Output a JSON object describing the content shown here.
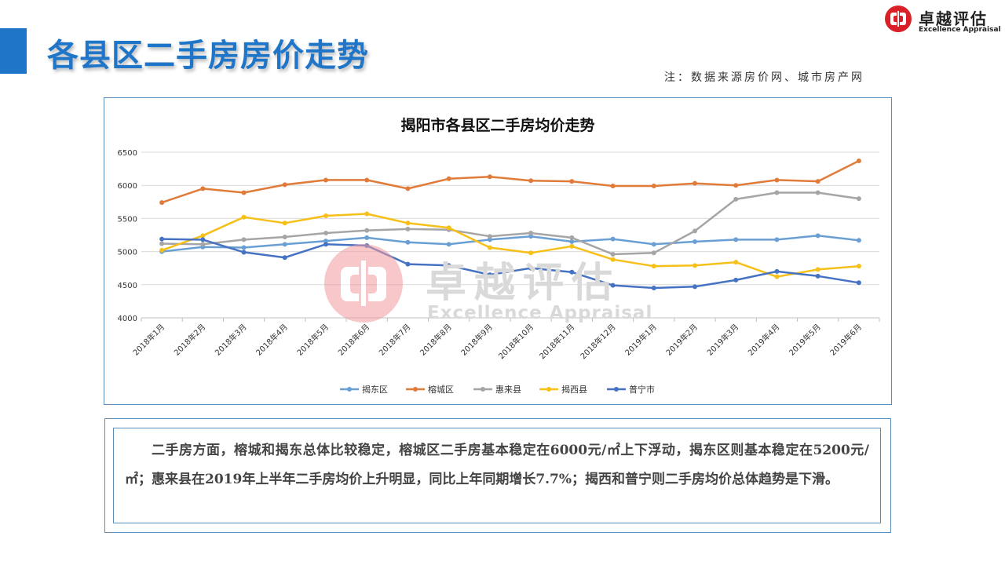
{
  "header": {
    "title": "各县区二手房房价走势",
    "source_note": "注：数据来源房价网、城市房产网"
  },
  "brand": {
    "name_cn": "卓越评估",
    "name_en": "Excellence Appraisal",
    "color": "#d92026"
  },
  "watermark": {
    "name_cn": "卓越评估",
    "name_en": "Excellence Appraisal"
  },
  "chart_data": {
    "type": "line",
    "title": "揭阳市各县区二手房均价走势",
    "xlabel": "",
    "ylabel": "",
    "ylim": [
      4000,
      6500
    ],
    "yticks": [
      4000,
      4500,
      5000,
      5500,
      6000,
      6500
    ],
    "grid": true,
    "legend_position": "bottom",
    "categories": [
      "2018年1月",
      "2018年2月",
      "2018年3月",
      "2018年4月",
      "2018年5月",
      "2018年6月",
      "2018年7月",
      "2018年8月",
      "2018年9月",
      "2018年10月",
      "2018年11月",
      "2018年12月",
      "2019年1月",
      "2019年2月",
      "2019年3月",
      "2019年4月",
      "2019年5月",
      "2019年6月"
    ],
    "series": [
      {
        "name": "揭东区",
        "color": "#6a9fd4",
        "values": [
          5000,
          5070,
          5060,
          5110,
          5160,
          5210,
          5140,
          5110,
          5180,
          5230,
          5150,
          5190,
          5110,
          5150,
          5180,
          5180,
          5240,
          5170
        ]
      },
      {
        "name": "榕城区",
        "color": "#e07b39",
        "values": [
          5740,
          5950,
          5890,
          6010,
          6080,
          6080,
          5950,
          6100,
          6130,
          6070,
          6060,
          5990,
          5990,
          6030,
          6000,
          6080,
          6060,
          6370
        ]
      },
      {
        "name": "惠来县",
        "color": "#a5a5a5",
        "values": [
          5120,
          5110,
          5180,
          5220,
          5280,
          5320,
          5340,
          5330,
          5230,
          5280,
          5210,
          4960,
          4980,
          5310,
          5790,
          5890,
          5890,
          5800
        ]
      },
      {
        "name": "揭西县",
        "color": "#f6c018",
        "values": [
          5020,
          5240,
          5520,
          5430,
          5540,
          5570,
          5430,
          5360,
          5060,
          4980,
          5080,
          4880,
          4780,
          4790,
          4840,
          4620,
          4730,
          4780
        ]
      },
      {
        "name": "普宁市",
        "color": "#4672c4",
        "values": [
          5190,
          5180,
          4990,
          4910,
          5110,
          5090,
          4810,
          4790,
          4650,
          4750,
          4690,
          4490,
          4450,
          4470,
          4570,
          4700,
          4630,
          4530
        ]
      }
    ]
  },
  "summary": {
    "text": "二手房方面，榕城和揭东总体比较稳定，榕城区二手房基本稳定在6000元/㎡上下浮动，揭东区则基本稳定在5200元/㎡；惠来县在2019年上半年二手房均价上升明显，同比上年同期增长7.7%；揭西和普宁则二手房均价总体趋势是下滑。"
  }
}
